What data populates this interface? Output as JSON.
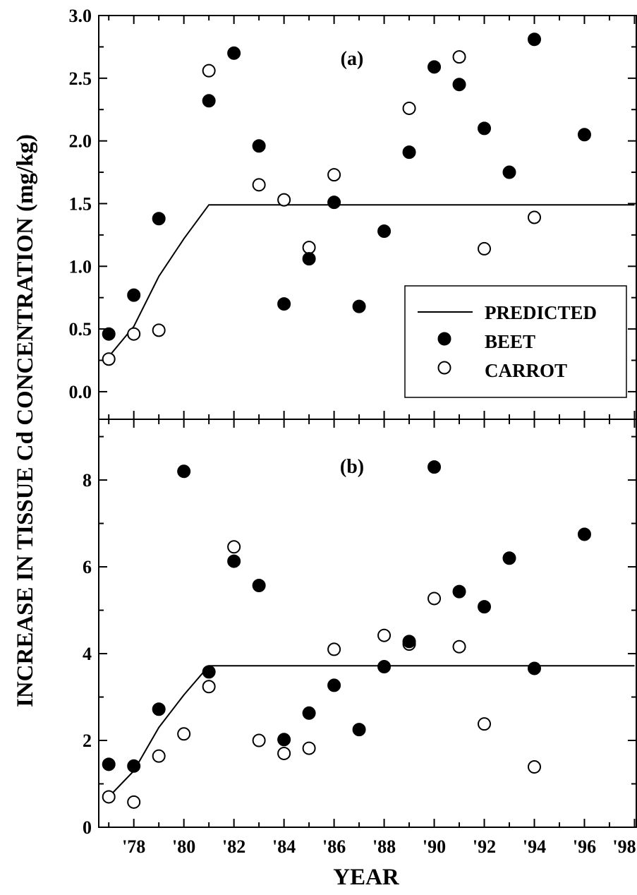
{
  "chart_data": [
    {
      "type": "scatter",
      "panel_label": "(a)",
      "xlim": [
        1976.6,
        1998.1
      ],
      "ylim": [
        -0.22,
        3.0
      ],
      "y_ticks": [
        "0.0",
        "0.5",
        "1.0",
        "1.5",
        "2.0",
        "2.5",
        "3.0"
      ],
      "y_tick_values": [
        0.0,
        0.5,
        1.0,
        1.5,
        2.0,
        2.5,
        3.0
      ],
      "series": [
        {
          "name": "PREDICTED",
          "style": "line",
          "x": [
            1977,
            1978,
            1979,
            1980,
            1981,
            1998
          ],
          "y": [
            0.28,
            0.52,
            0.92,
            1.22,
            1.49,
            1.49
          ]
        },
        {
          "name": "BEET",
          "style": "filled-circle",
          "x": [
            1977,
            1978,
            1979,
            1981,
            1982,
            1983,
            1984,
            1985,
            1986,
            1987,
            1988,
            1989,
            1990,
            1991,
            1992,
            1993,
            1994,
            1996
          ],
          "y": [
            0.46,
            0.77,
            1.38,
            2.32,
            2.7,
            1.96,
            0.7,
            1.06,
            1.51,
            0.68,
            1.28,
            1.91,
            2.59,
            2.45,
            2.1,
            1.75,
            2.81,
            2.05
          ]
        },
        {
          "name": "CARROT",
          "style": "open-circle",
          "x": [
            1977,
            1978,
            1979,
            1981,
            1983,
            1984,
            1985,
            1986,
            1989,
            1991,
            1992,
            1994
          ],
          "y": [
            0.26,
            0.46,
            0.49,
            2.56,
            1.65,
            1.53,
            1.15,
            1.73,
            2.26,
            2.67,
            1.14,
            1.39
          ]
        }
      ],
      "legend": {
        "placement": "lower-right",
        "entries": [
          "PREDICTED",
          "BEET",
          "CARROT"
        ]
      }
    },
    {
      "type": "scatter",
      "panel_label": "(b)",
      "xlim": [
        1976.6,
        1998.1
      ],
      "ylim": [
        0,
        9.4
      ],
      "y_ticks": [
        "0",
        "2",
        "4",
        "6",
        "8"
      ],
      "y_tick_values": [
        0,
        2,
        4,
        6,
        8
      ],
      "series": [
        {
          "name": "PREDICTED",
          "style": "line",
          "x": [
            1977,
            1978,
            1979,
            1980,
            1981,
            1998
          ],
          "y": [
            0.7,
            1.3,
            2.3,
            3.05,
            3.72,
            3.72
          ]
        },
        {
          "name": "BEET",
          "style": "filled-circle",
          "x": [
            1977,
            1978,
            1979,
            1980,
            1981,
            1982,
            1983,
            1984,
            1985,
            1986,
            1987,
            1988,
            1989,
            1990,
            1991,
            1992,
            1993,
            1994,
            1996
          ],
          "y": [
            1.45,
            1.41,
            2.72,
            8.2,
            3.58,
            6.13,
            5.57,
            2.02,
            2.63,
            3.27,
            2.25,
            3.7,
            4.28,
            8.3,
            5.43,
            5.08,
            6.2,
            3.66,
            6.75
          ]
        },
        {
          "name": "CARROT",
          "style": "open-circle",
          "x": [
            1977,
            1978,
            1979,
            1980,
            1981,
            1982,
            1983,
            1984,
            1985,
            1986,
            1988,
            1989,
            1990,
            1991,
            1992,
            1994
          ],
          "y": [
            0.7,
            0.58,
            1.64,
            2.15,
            3.24,
            6.46,
            2.0,
            1.7,
            1.82,
            4.1,
            4.42,
            4.22,
            5.27,
            4.16,
            2.38,
            1.39
          ]
        }
      ]
    }
  ],
  "axes": {
    "x_title": "YEAR",
    "y_title": "INCREASE IN TISSUE Cd CONCENTRATION (mg/kg)",
    "x_ticks": [
      "'78",
      "'80",
      "'82",
      "'84",
      "'86",
      "'88",
      "'90",
      "'92",
      "'94",
      "'96",
      "'98"
    ],
    "x_tick_values": [
      1978,
      1980,
      1982,
      1984,
      1986,
      1988,
      1990,
      1992,
      1994,
      1996,
      1998
    ]
  }
}
